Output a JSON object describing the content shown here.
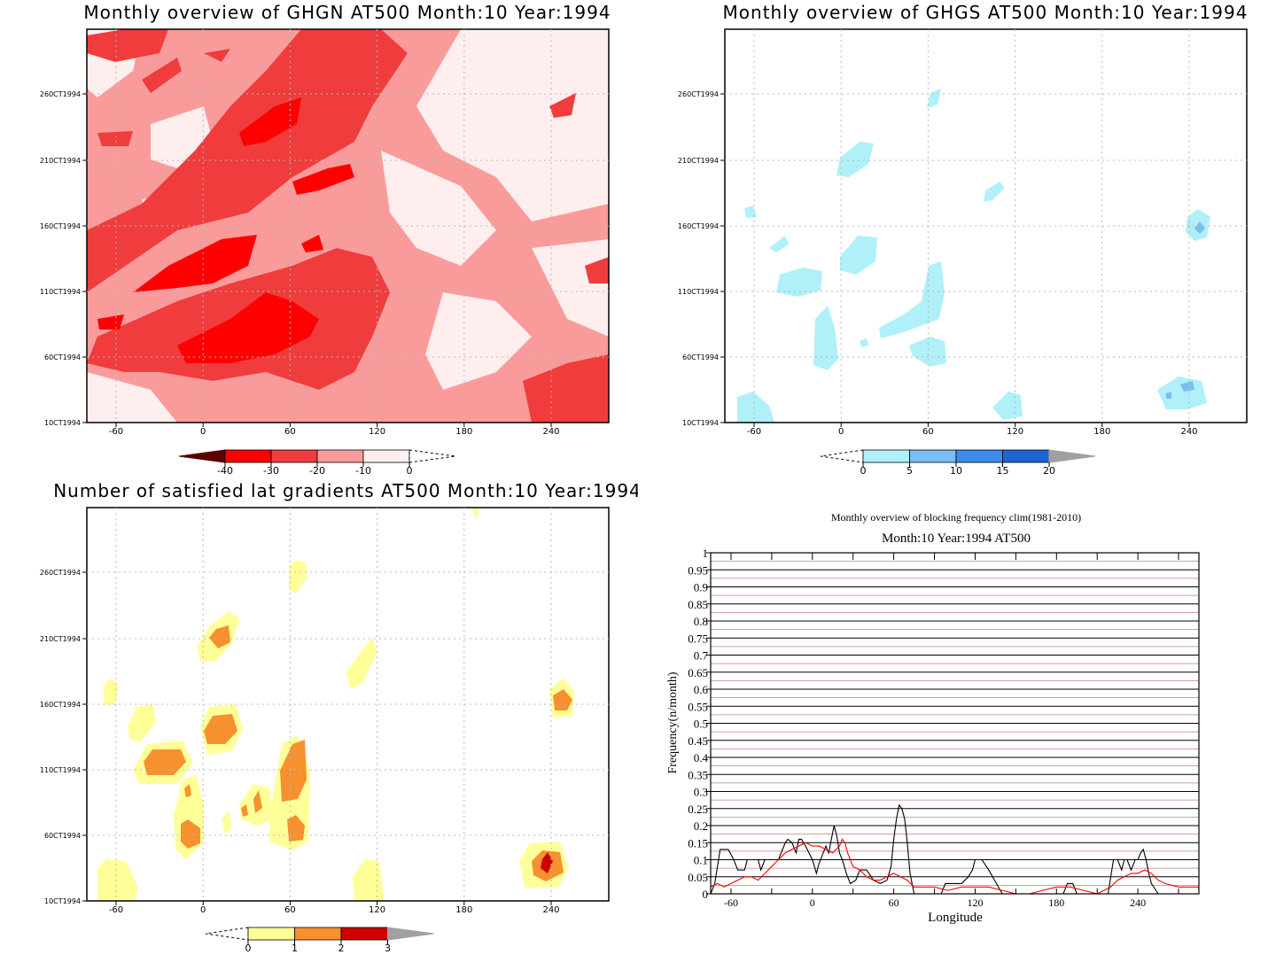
{
  "panels": [
    {
      "id": "ghgn",
      "title": "Monthly overview of GHGN AT500 Month:10 Year:1994",
      "x_ticks": [
        "-60",
        "0",
        "60",
        "120",
        "180",
        "240"
      ],
      "y_ticks": [
        "10CT1994",
        "60CT1994",
        "110CT1994",
        "160CT1994",
        "210CT1994",
        "260CT1994"
      ],
      "colorbar": {
        "labels": [
          "-40",
          "-30",
          "-20",
          "-10",
          "0"
        ],
        "colors": [
          "#5a0000",
          "#ff0000",
          "#f03c3c",
          "#fa9b9b",
          "#ffeeee"
        ]
      }
    },
    {
      "id": "ghgs",
      "title": "Monthly overview of GHGS AT500 Month:10 Year:1994",
      "x_ticks": [
        "-60",
        "0",
        "60",
        "120",
        "180",
        "240"
      ],
      "y_ticks": [
        "10CT1994",
        "60CT1994",
        "110CT1994",
        "160CT1994",
        "210CT1994",
        "260CT1994"
      ],
      "colorbar": {
        "labels": [
          "0",
          "5",
          "10",
          "15",
          "20"
        ],
        "colors": [
          "#b0f0f8",
          "#78bef0",
          "#3c8cf0",
          "#1e64d2",
          "#a0a0a0"
        ]
      }
    },
    {
      "id": "latgrad",
      "title": "Number of satisfied lat gradients AT500 Month:10 Year:1994",
      "x_ticks": [
        "-60",
        "0",
        "60",
        "120",
        "180",
        "240"
      ],
      "y_ticks": [
        "10CT1994",
        "60CT1994",
        "110CT1994",
        "160CT1994",
        "210CT1994",
        "260CT1994"
      ],
      "colorbar": {
        "labels": [
          "0",
          "1",
          "2",
          "3"
        ],
        "colors": [
          "#ffff9a",
          "#f7902e",
          "#cc0000",
          "#a0a0a0"
        ]
      }
    }
  ],
  "chart_data": {
    "type": "line",
    "title": "Monthly overview of blocking frequency clim(1981-2010)",
    "subtitle": "Month:10 Year:1994  AT500",
    "xlabel": "Longitude",
    "ylabel": "Frequency(n/month)",
    "xlim": [
      -75,
      285
    ],
    "ylim": [
      0,
      1
    ],
    "x_ticks": [
      "-60",
      "0",
      "60",
      "120",
      "180",
      "240"
    ],
    "y_ticks": [
      "0",
      "0.05",
      "0.1",
      "0.15",
      "0.2",
      "0.25",
      "0.3",
      "0.35",
      "0.4",
      "0.45",
      "0.5",
      "0.55",
      "0.6",
      "0.65",
      "0.7",
      "0.75",
      "0.8",
      "0.85",
      "0.9",
      "0.95",
      "1"
    ],
    "series": [
      {
        "color": "#000000",
        "x": [
          -75,
          -72,
          -68,
          -62,
          -58,
          -55,
          -50,
          -48,
          -45,
          -40,
          -38,
          -35,
          -30,
          -25,
          -20,
          -18,
          -15,
          -12,
          -10,
          -8,
          -5,
          0,
          3,
          5,
          8,
          10,
          12,
          14,
          16,
          18,
          20,
          22,
          25,
          28,
          32,
          35,
          40,
          45,
          50,
          55,
          58,
          60,
          62,
          64,
          66,
          68,
          70,
          72,
          75,
          80,
          85,
          90,
          95,
          98,
          100,
          102,
          105,
          110,
          115,
          118,
          120,
          125,
          130,
          140,
          150,
          160,
          170,
          180,
          185,
          188,
          190,
          192,
          195,
          200,
          210,
          215,
          218,
          220,
          222,
          225,
          228,
          230,
          232,
          235,
          238,
          240,
          242,
          244,
          246,
          248,
          250,
          255,
          260,
          270,
          280,
          285
        ],
        "y": [
          0,
          0.03,
          0.13,
          0.13,
          0.1,
          0.07,
          0.07,
          0.1,
          0.1,
          0.1,
          0.07,
          0.1,
          0.1,
          0.1,
          0.15,
          0.16,
          0.15,
          0.12,
          0.16,
          0.16,
          0.14,
          0.1,
          0.06,
          0.09,
          0.12,
          0.14,
          0.12,
          0.16,
          0.2,
          0.17,
          0.12,
          0.1,
          0.06,
          0.03,
          0.04,
          0.07,
          0.07,
          0.04,
          0.03,
          0.04,
          0.08,
          0.16,
          0.22,
          0.26,
          0.25,
          0.22,
          0.15,
          0.06,
          0,
          0,
          0,
          0,
          0,
          0.03,
          0.03,
          0.03,
          0.03,
          0.03,
          0.05,
          0.07,
          0.1,
          0.1,
          0.07,
          0,
          0,
          0,
          0,
          0,
          0,
          0.03,
          0.03,
          0.03,
          0,
          0,
          0,
          0,
          0,
          0.05,
          0.1,
          0.1,
          0.07,
          0.1,
          0.1,
          0.07,
          0.1,
          0.1,
          0.12,
          0.13,
          0.1,
          0.06,
          0.03,
          0,
          0,
          0,
          0,
          0
        ]
      },
      {
        "color": "#ff0000",
        "x": [
          -75,
          -70,
          -65,
          -60,
          -55,
          -50,
          -45,
          -40,
          -35,
          -30,
          -25,
          -20,
          -15,
          -10,
          -5,
          0,
          5,
          10,
          15,
          20,
          22,
          24,
          26,
          28,
          30,
          35,
          40,
          45,
          50,
          55,
          60,
          65,
          70,
          75,
          80,
          90,
          100,
          110,
          120,
          130,
          140,
          150,
          160,
          170,
          180,
          190,
          200,
          210,
          220,
          225,
          230,
          235,
          240,
          245,
          250,
          255,
          260,
          270,
          280,
          285
        ],
        "y": [
          0.02,
          0.03,
          0.02,
          0.03,
          0.04,
          0.05,
          0.05,
          0.04,
          0.06,
          0.08,
          0.1,
          0.12,
          0.13,
          0.14,
          0.15,
          0.14,
          0.14,
          0.13,
          0.12,
          0.14,
          0.16,
          0.15,
          0.12,
          0.1,
          0.08,
          0.07,
          0.05,
          0.04,
          0.04,
          0.05,
          0.06,
          0.05,
          0.04,
          0.02,
          0.02,
          0.02,
          0.01,
          0.02,
          0.02,
          0.02,
          0.01,
          0.0,
          0.0,
          0.01,
          0.02,
          0.02,
          0.01,
          0.0,
          0.02,
          0.04,
          0.05,
          0.06,
          0.06,
          0.07,
          0.06,
          0.04,
          0.03,
          0.02,
          0.02,
          0.02
        ]
      }
    ]
  }
}
